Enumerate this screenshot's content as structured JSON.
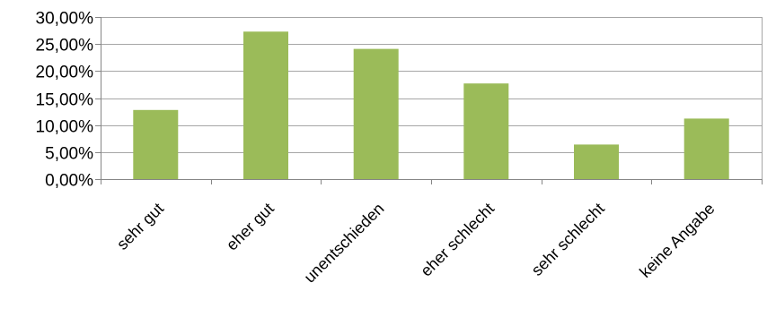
{
  "chart_data": {
    "type": "bar",
    "title": "",
    "xlabel": "",
    "ylabel": "",
    "categories": [
      "sehr gut",
      "eher gut",
      "unentschieden",
      "eher schlecht",
      "sehr schlecht",
      "keine Angabe"
    ],
    "values": [
      0.128,
      0.273,
      0.241,
      0.177,
      0.064,
      0.112
    ],
    "ylim": [
      0,
      0.3
    ],
    "ytick_labels": [
      "0,00%",
      "5,00%",
      "10,00%",
      "15,00%",
      "20,00%",
      "25,00%",
      "30,00%"
    ],
    "grid": true,
    "legend": "none",
    "colors": {
      "bar": "#9BBB59",
      "grid": "#A6A6A6",
      "axis": "#868686"
    }
  }
}
